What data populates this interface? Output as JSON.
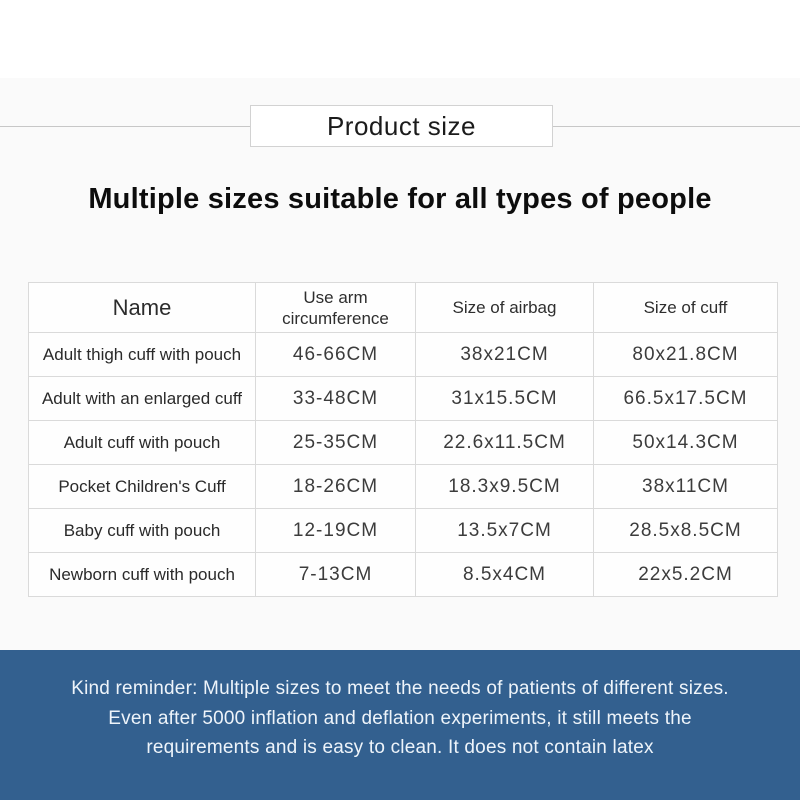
{
  "ribbon": {
    "title": "Product size"
  },
  "heading": "Multiple sizes suitable for all types of people",
  "table": {
    "columns": [
      "Name",
      "Use arm circumference",
      "Size of airbag",
      "Size of cuff"
    ],
    "rows": [
      {
        "name": "Adult thigh cuff with pouch",
        "arm": "46-66CM",
        "airbag": "38x21CM",
        "cuff": "80x21.8CM"
      },
      {
        "name": "Adult with an enlarged cuff",
        "arm": "33-48CM",
        "airbag": "31x15.5CM",
        "cuff": "66.5x17.5CM"
      },
      {
        "name": "Adult cuff with pouch",
        "arm": "25-35CM",
        "airbag": "22.6x11.5CM",
        "cuff": "50x14.3CM"
      },
      {
        "name": "Pocket Children's Cuff",
        "arm": "18-26CM",
        "airbag": "18.3x9.5CM",
        "cuff": "38x11CM"
      },
      {
        "name": "Baby cuff with pouch",
        "arm": "12-19CM",
        "airbag": "13.5x7CM",
        "cuff": "28.5x8.5CM"
      },
      {
        "name": "Newborn cuff with pouch",
        "arm": "7-13CM",
        "airbag": "8.5x4CM",
        "cuff": "22x5.2CM"
      }
    ]
  },
  "footer": {
    "lines": [
      "Kind reminder: Multiple sizes to meet the needs of patients of different sizes.",
      "Even after 5000 inflation and deflation experiments, it still meets the",
      "requirements and is easy to clean. It does not contain latex"
    ],
    "bg_color": "#33608f",
    "text_color": "#eef4fa"
  }
}
